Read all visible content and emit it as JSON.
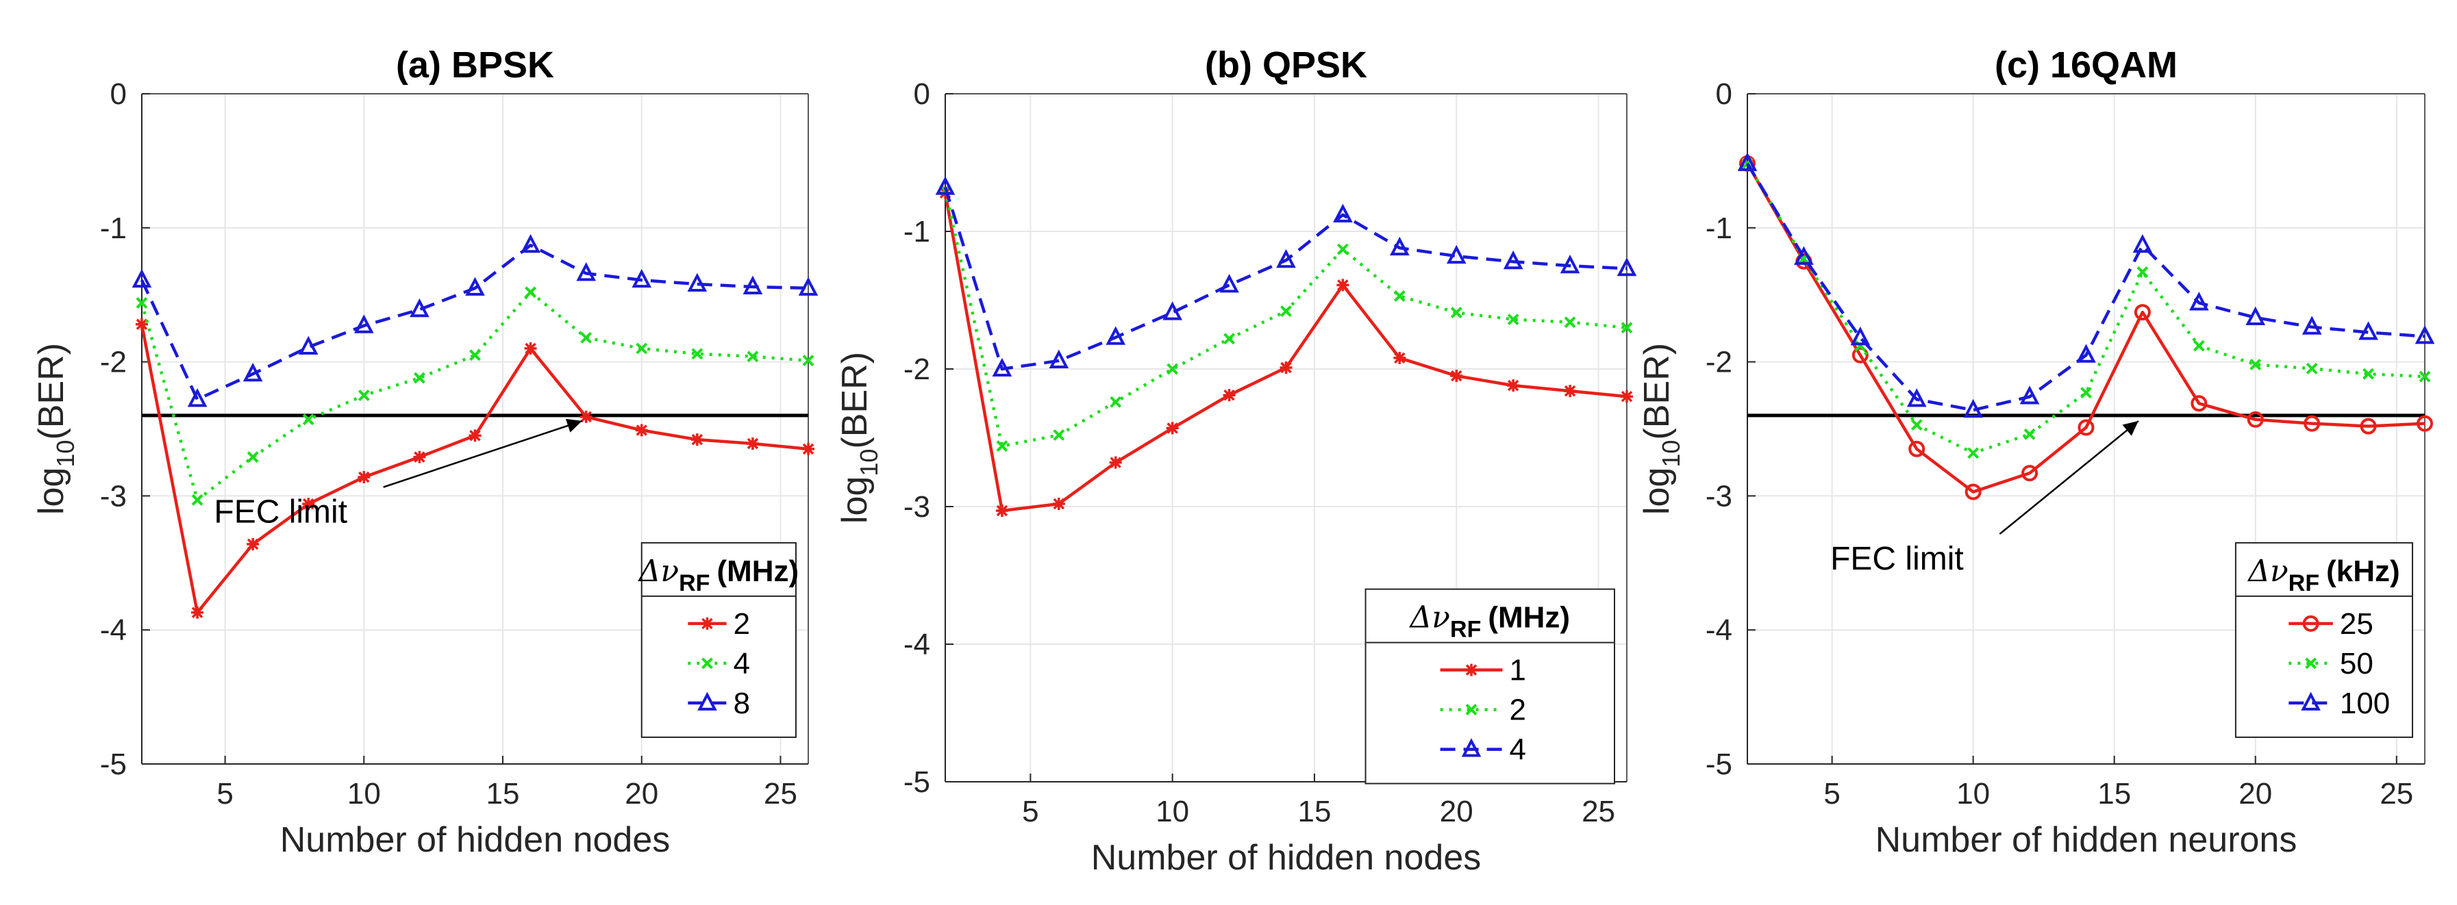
{
  "chart_data": [
    {
      "type": "line",
      "title": "(a) BPSK",
      "xlabel": "Number of hidden nodes",
      "ylabel": "log10(BER)",
      "ylabel_main": "log",
      "ylabel_sub": "10",
      "ylabel_suffix": "(BER)",
      "xlim": [
        2,
        26
      ],
      "ylim": [
        -5,
        0
      ],
      "xticks": [
        5,
        10,
        15,
        20,
        25
      ],
      "yticks": [
        0,
        -1,
        -2,
        -3,
        -4,
        -5
      ],
      "grid": true,
      "x": [
        2,
        4,
        6,
        8,
        10,
        12,
        14,
        16,
        18,
        20,
        22,
        24,
        26
      ],
      "series": [
        {
          "name": "2",
          "values": [
            -1.72,
            -3.87,
            -3.36,
            -3.06,
            -2.86,
            -2.71,
            -2.55,
            -1.9,
            -2.41,
            -2.51,
            -2.58,
            -2.61,
            -2.65
          ],
          "color": "#e8201a",
          "dash": "solid",
          "marker": "star"
        },
        {
          "name": "4",
          "values": [
            -1.56,
            -3.03,
            -2.71,
            -2.43,
            -2.25,
            -2.12,
            -1.95,
            -1.48,
            -1.82,
            -1.9,
            -1.94,
            -1.96,
            -1.99
          ],
          "color": "#1bde1b",
          "dash": "dotted",
          "marker": "x"
        },
        {
          "name": "8",
          "values": [
            -1.39,
            -2.28,
            -2.09,
            -1.89,
            -1.73,
            -1.61,
            -1.45,
            -1.13,
            -1.34,
            -1.39,
            -1.42,
            -1.44,
            -1.45
          ],
          "color": "#1a1adb",
          "dash": "dashed",
          "marker": "triangle"
        }
      ],
      "fec_limit": -2.4,
      "annotation": {
        "text": "FEC limit",
        "point": [
          18,
          -2.4
        ],
        "label_pos": [
          7,
          -3.2
        ]
      },
      "legend": {
        "position": "bottom-right",
        "title_prefix": "Δν",
        "title_sub": "RF",
        "title_unit": "(MHz)",
        "anchor": [
          20.0,
          -3.35
        ]
      }
    },
    {
      "type": "line",
      "title": "(b) QPSK",
      "xlabel": "Number of hidden nodes",
      "ylabel": "log10(BER)",
      "ylabel_main": "log",
      "ylabel_sub": "10",
      "ylabel_suffix": "(BER)",
      "xlim": [
        2,
        26
      ],
      "ylim": [
        -5,
        0
      ],
      "xticks": [
        5,
        10,
        15,
        20,
        25
      ],
      "yticks": [
        0,
        -1,
        -2,
        -3,
        -4,
        -5
      ],
      "grid": true,
      "x": [
        2,
        4,
        6,
        8,
        10,
        12,
        14,
        16,
        18,
        20,
        22,
        24,
        26
      ],
      "series": [
        {
          "name": "1",
          "values": [
            -0.72,
            -3.03,
            -2.98,
            -2.68,
            -2.43,
            -2.19,
            -1.99,
            -1.39,
            -1.92,
            -2.05,
            -2.12,
            -2.16,
            -2.2
          ],
          "color": "#e8201a",
          "dash": "solid",
          "marker": "star"
        },
        {
          "name": "2",
          "values": [
            -0.7,
            -2.56,
            -2.48,
            -2.24,
            -2.0,
            -1.78,
            -1.58,
            -1.13,
            -1.47,
            -1.59,
            -1.64,
            -1.66,
            -1.7
          ],
          "color": "#1bde1b",
          "dash": "dotted",
          "marker": "x"
        },
        {
          "name": "4",
          "values": [
            -0.68,
            -2.0,
            -1.94,
            -1.77,
            -1.59,
            -1.39,
            -1.21,
            -0.88,
            -1.12,
            -1.18,
            -1.22,
            -1.25,
            -1.27
          ],
          "color": "#1a1adb",
          "dash": "dashed",
          "marker": "triangle"
        }
      ],
      "legend": {
        "position": "bottom-right",
        "title_prefix": "Δν",
        "title_sub": "RF",
        "title_unit": "(MHz)",
        "anchor": [
          16.8,
          -3.6
        ]
      }
    },
    {
      "type": "line",
      "title": "(c) 16QAM",
      "xlabel": "Number of hidden neurons",
      "ylabel": "log10(BER)",
      "ylabel_main": "log",
      "ylabel_sub": "10",
      "ylabel_suffix": "(BER)",
      "xlim": [
        2,
        26
      ],
      "ylim": [
        -5,
        0
      ],
      "xticks": [
        5,
        10,
        15,
        20,
        25
      ],
      "yticks": [
        0,
        -1,
        -2,
        -3,
        -4,
        -5
      ],
      "grid": true,
      "x": [
        2,
        4,
        6,
        8,
        10,
        12,
        14,
        16,
        18,
        20,
        22,
        24,
        26
      ],
      "series": [
        {
          "name": "25",
          "values": [
            -0.52,
            -1.25,
            -1.95,
            -2.65,
            -2.97,
            -2.83,
            -2.49,
            -1.63,
            -2.31,
            -2.43,
            -2.46,
            -2.48,
            -2.46
          ],
          "color": "#e8201a",
          "dash": "solid",
          "marker": "circle"
        },
        {
          "name": "50",
          "values": [
            -0.52,
            -1.23,
            -1.88,
            -2.47,
            -2.68,
            -2.54,
            -2.23,
            -1.33,
            -1.88,
            -2.02,
            -2.05,
            -2.09,
            -2.11
          ],
          "color": "#1bde1b",
          "dash": "dotted",
          "marker": "x"
        },
        {
          "name": "100",
          "values": [
            -0.52,
            -1.22,
            -1.82,
            -2.28,
            -2.36,
            -2.26,
            -1.95,
            -1.13,
            -1.56,
            -1.67,
            -1.74,
            -1.78,
            -1.81
          ],
          "color": "#1a1adb",
          "dash": "dashed",
          "marker": "triangle"
        }
      ],
      "fec_limit": -2.4,
      "annotation": {
        "text": "FEC limit",
        "point": [
          16,
          -2.4
        ],
        "label_pos": [
          7.3,
          -3.55
        ]
      },
      "legend": {
        "position": "bottom-right",
        "title_prefix": "Δν",
        "title_sub": "RF",
        "title_unit": "(kHz)",
        "anchor": [
          19.3,
          -3.35
        ]
      }
    }
  ]
}
